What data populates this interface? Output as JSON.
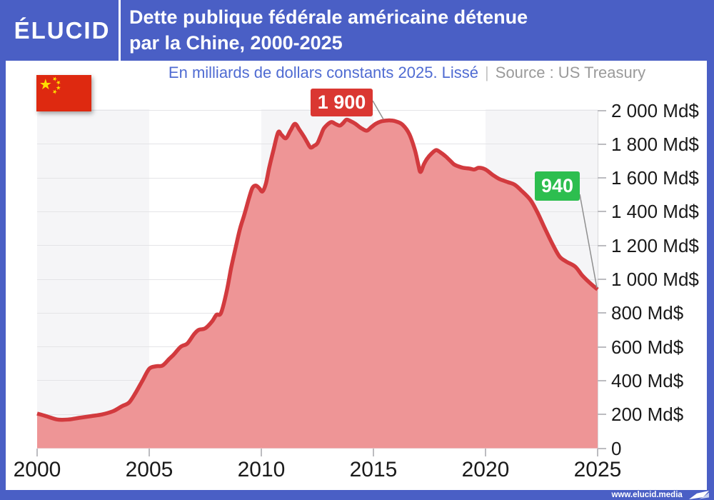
{
  "brand": {
    "logo_text": "ÉLUCID",
    "website": "www.elucid.media"
  },
  "header": {
    "title_line1": "Dette publique fédérale américaine détenue",
    "title_line2": "par la Chine, 2000-2025"
  },
  "subtitle": {
    "unit_note": "En milliards de dollars constants 2025. Lissé",
    "separator": "|",
    "source": "Source : US Treasury"
  },
  "annotations": {
    "peak": {
      "label": "1 900",
      "value": 1900,
      "year": 2014,
      "color": "#da3732"
    },
    "latest": {
      "label": "940",
      "value": 940,
      "year": 2025,
      "color": "#2dbe4f"
    }
  },
  "flag": {
    "country": "China",
    "red": "#de2910",
    "yellow": "#ffde00"
  },
  "colors": {
    "frame_blue": "#4a5fc5",
    "subtitle_blue": "#4f6bd2",
    "source_gray": "#9a9a9a",
    "line_red": "#d23a3e",
    "area_pink": "#ee9596",
    "band_gray": "#f5f5f7",
    "label_dark": "#1a1a1a"
  },
  "chart_data": {
    "type": "area",
    "title": "Dette publique fédérale américaine détenue par la Chine, 2000-2025",
    "ylabel": "Md$ constants 2025",
    "source": "US Treasury",
    "x_range": [
      2000,
      2025
    ],
    "y_range": [
      0,
      2000
    ],
    "grid": true,
    "legend": "none",
    "x_ticks": [
      {
        "year": 2000,
        "label": "2000"
      },
      {
        "year": 2005,
        "label": "2005"
      },
      {
        "year": 2010,
        "label": "2010"
      },
      {
        "year": 2015,
        "label": "2015"
      },
      {
        "year": 2020,
        "label": "2020"
      },
      {
        "year": 2025,
        "label": "2025"
      }
    ],
    "y_ticks": [
      {
        "value": 2000,
        "label": "2 000 Md$"
      },
      {
        "value": 1800,
        "label": "1 800 Md$"
      },
      {
        "value": 1600,
        "label": "1 600 Md$"
      },
      {
        "value": 1400,
        "label": "1 400 Md$"
      },
      {
        "value": 1200,
        "label": "1 200 Md$"
      },
      {
        "value": 1000,
        "label": "1 000 Md$"
      },
      {
        "value": 800,
        "label": "800 Md$"
      },
      {
        "value": 600,
        "label": "600 Md$"
      },
      {
        "value": 400,
        "label": "400 Md$"
      },
      {
        "value": 200,
        "label": "200 Md$"
      },
      {
        "value": 0,
        "label": "0"
      }
    ],
    "annual_values": {
      "2000": 205,
      "2001": 172,
      "2002": 185,
      "2003": 210,
      "2004": 270,
      "2005": 470,
      "2006": 560,
      "2007": 690,
      "2008": 790,
      "2009": 1290,
      "2010": 1530,
      "2011": 1835,
      "2012": 1795,
      "2013": 1925,
      "2014": 1935,
      "2015": 1920,
      "2016": 1935,
      "2017": 1665,
      "2018": 1750,
      "2019": 1660,
      "2020": 1650,
      "2021": 1575,
      "2022": 1470,
      "2023": 1205,
      "2024": 1075,
      "2025": 940
    },
    "series": [
      [
        2000.0,
        205
      ],
      [
        2000.4,
        190
      ],
      [
        2000.9,
        170
      ],
      [
        2001.4,
        170
      ],
      [
        2001.9,
        180
      ],
      [
        2002.4,
        190
      ],
      [
        2002.9,
        200
      ],
      [
        2003.4,
        220
      ],
      [
        2003.8,
        250
      ],
      [
        2004.1,
        270
      ],
      [
        2004.4,
        330
      ],
      [
        2004.7,
        400
      ],
      [
        2005.0,
        470
      ],
      [
        2005.3,
        485
      ],
      [
        2005.6,
        490
      ],
      [
        2005.9,
        530
      ],
      [
        2006.1,
        555
      ],
      [
        2006.4,
        600
      ],
      [
        2006.7,
        620
      ],
      [
        2007.0,
        675
      ],
      [
        2007.2,
        700
      ],
      [
        2007.5,
        710
      ],
      [
        2007.8,
        750
      ],
      [
        2008.0,
        790
      ],
      [
        2008.2,
        800
      ],
      [
        2008.45,
        925
      ],
      [
        2008.65,
        1065
      ],
      [
        2008.85,
        1185
      ],
      [
        2009.05,
        1300
      ],
      [
        2009.25,
        1385
      ],
      [
        2009.45,
        1480
      ],
      [
        2009.6,
        1540
      ],
      [
        2009.75,
        1555
      ],
      [
        2009.9,
        1540
      ],
      [
        2010.05,
        1520
      ],
      [
        2010.2,
        1565
      ],
      [
        2010.35,
        1660
      ],
      [
        2010.55,
        1770
      ],
      [
        2010.75,
        1870
      ],
      [
        2010.9,
        1855
      ],
      [
        2011.1,
        1835
      ],
      [
        2011.3,
        1880
      ],
      [
        2011.5,
        1920
      ],
      [
        2011.7,
        1885
      ],
      [
        2011.9,
        1845
      ],
      [
        2012.05,
        1810
      ],
      [
        2012.2,
        1780
      ],
      [
        2012.35,
        1790
      ],
      [
        2012.5,
        1805
      ],
      [
        2012.65,
        1850
      ],
      [
        2012.8,
        1895
      ],
      [
        2013.1,
        1930
      ],
      [
        2013.3,
        1920
      ],
      [
        2013.5,
        1910
      ],
      [
        2013.65,
        1925
      ],
      [
        2013.8,
        1945
      ],
      [
        2014.0,
        1935
      ],
      [
        2014.2,
        1920
      ],
      [
        2014.45,
        1895
      ],
      [
        2014.7,
        1880
      ],
      [
        2014.9,
        1900
      ],
      [
        2015.1,
        1920
      ],
      [
        2015.35,
        1935
      ],
      [
        2015.6,
        1940
      ],
      [
        2015.8,
        1940
      ],
      [
        2016.0,
        1935
      ],
      [
        2016.3,
        1915
      ],
      [
        2016.6,
        1860
      ],
      [
        2016.85,
        1765
      ],
      [
        2017.0,
        1680
      ],
      [
        2017.1,
        1635
      ],
      [
        2017.25,
        1680
      ],
      [
        2017.4,
        1715
      ],
      [
        2017.6,
        1745
      ],
      [
        2017.8,
        1765
      ],
      [
        2018.0,
        1750
      ],
      [
        2018.2,
        1730
      ],
      [
        2018.4,
        1705
      ],
      [
        2018.6,
        1680
      ],
      [
        2018.8,
        1668
      ],
      [
        2019.0,
        1660
      ],
      [
        2019.3,
        1655
      ],
      [
        2019.5,
        1650
      ],
      [
        2019.7,
        1660
      ],
      [
        2020.0,
        1650
      ],
      [
        2020.3,
        1620
      ],
      [
        2020.6,
        1595
      ],
      [
        2021.0,
        1575
      ],
      [
        2021.3,
        1560
      ],
      [
        2021.6,
        1525
      ],
      [
        2022.0,
        1470
      ],
      [
        2022.3,
        1400
      ],
      [
        2022.6,
        1315
      ],
      [
        2023.0,
        1205
      ],
      [
        2023.3,
        1135
      ],
      [
        2023.6,
        1105
      ],
      [
        2024.0,
        1075
      ],
      [
        2024.3,
        1025
      ],
      [
        2024.6,
        985
      ],
      [
        2024.9,
        950
      ],
      [
        2025.0,
        940
      ]
    ]
  }
}
